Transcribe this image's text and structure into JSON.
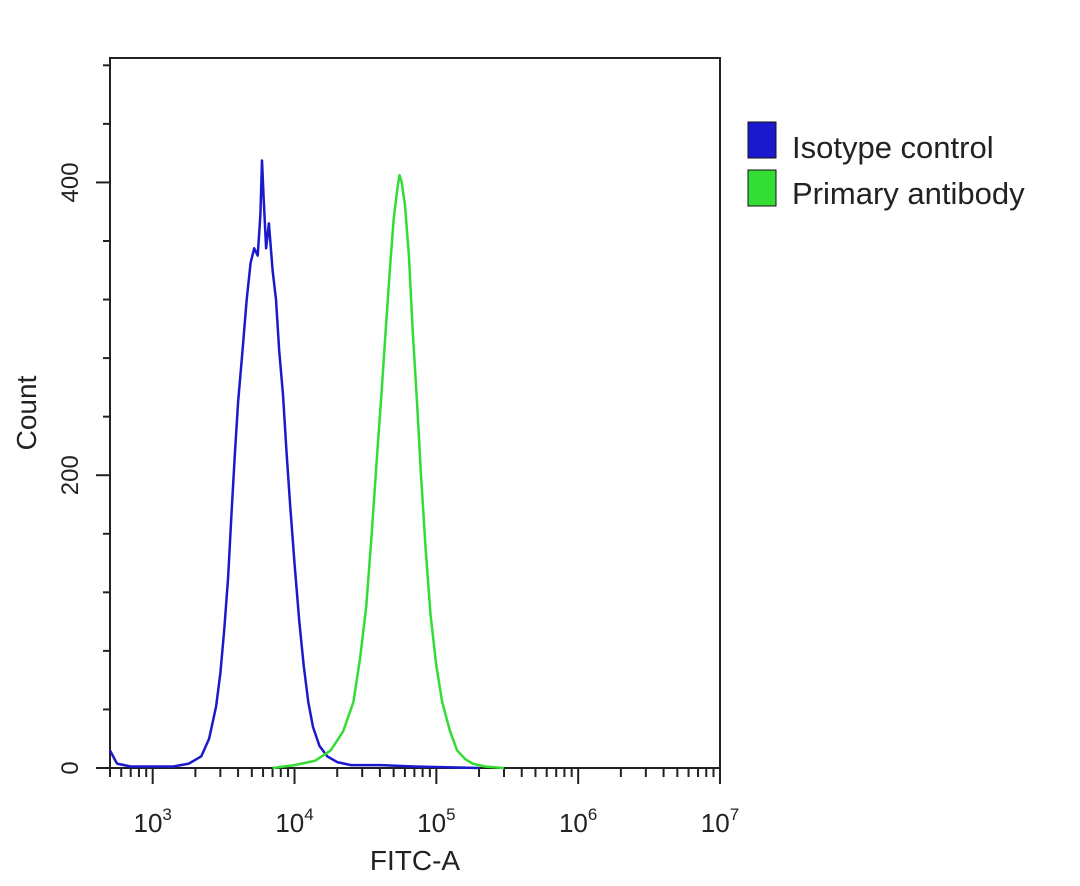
{
  "chart_data": {
    "type": "line",
    "xlabel": "FITC-A",
    "ylabel": "Count",
    "xscale": "log",
    "xlim": [
      500,
      10000000
    ],
    "ylim": [
      0,
      485
    ],
    "x_ticks": [
      {
        "value": 1000,
        "base": "10",
        "exp": "3"
      },
      {
        "value": 10000,
        "base": "10",
        "exp": "4"
      },
      {
        "value": 100000,
        "base": "10",
        "exp": "5"
      },
      {
        "value": 1000000,
        "base": "10",
        "exp": "6"
      },
      {
        "value": 10000000,
        "base": "10",
        "exp": "7"
      }
    ],
    "y_ticks": [
      0,
      200,
      400
    ],
    "y_tick_labels": [
      "0",
      "200",
      "400"
    ],
    "legend_position": "right-outside-top",
    "series": [
      {
        "name": "Isotype control",
        "color": "#1a1acc",
        "points": [
          [
            500,
            12
          ],
          [
            560,
            3
          ],
          [
            700,
            1
          ],
          [
            1000,
            1
          ],
          [
            1400,
            1
          ],
          [
            1800,
            3
          ],
          [
            2200,
            8
          ],
          [
            2500,
            20
          ],
          [
            2800,
            42
          ],
          [
            3000,
            65
          ],
          [
            3200,
            95
          ],
          [
            3400,
            130
          ],
          [
            3600,
            175
          ],
          [
            3800,
            215
          ],
          [
            4000,
            250
          ],
          [
            4300,
            285
          ],
          [
            4600,
            320
          ],
          [
            4900,
            345
          ],
          [
            5200,
            355
          ],
          [
            5500,
            350
          ],
          [
            5750,
            378
          ],
          [
            5900,
            415
          ],
          [
            6050,
            390
          ],
          [
            6300,
            355
          ],
          [
            6600,
            372
          ],
          [
            7000,
            340
          ],
          [
            7400,
            320
          ],
          [
            7800,
            285
          ],
          [
            8300,
            255
          ],
          [
            8800,
            215
          ],
          [
            9300,
            180
          ],
          [
            10000,
            140
          ],
          [
            10800,
            100
          ],
          [
            11600,
            70
          ],
          [
            12500,
            45
          ],
          [
            13500,
            28
          ],
          [
            15000,
            15
          ],
          [
            17000,
            8
          ],
          [
            20000,
            4
          ],
          [
            25000,
            2
          ],
          [
            40000,
            2
          ],
          [
            70000,
            1
          ],
          [
            200000,
            0
          ]
        ]
      },
      {
        "name": "Primary antibody",
        "color": "#33dd33",
        "points": [
          [
            7000,
            0
          ],
          [
            10000,
            2
          ],
          [
            14000,
            5
          ],
          [
            18000,
            12
          ],
          [
            22000,
            25
          ],
          [
            26000,
            45
          ],
          [
            29000,
            75
          ],
          [
            32000,
            110
          ],
          [
            35000,
            160
          ],
          [
            38000,
            210
          ],
          [
            41000,
            255
          ],
          [
            44000,
            300
          ],
          [
            47000,
            340
          ],
          [
            50000,
            375
          ],
          [
            53000,
            395
          ],
          [
            55000,
            405
          ],
          [
            57000,
            400
          ],
          [
            60000,
            385
          ],
          [
            64000,
            350
          ],
          [
            68000,
            300
          ],
          [
            73000,
            250
          ],
          [
            78000,
            200
          ],
          [
            84000,
            150
          ],
          [
            91000,
            105
          ],
          [
            100000,
            70
          ],
          [
            110000,
            45
          ],
          [
            125000,
            25
          ],
          [
            140000,
            12
          ],
          [
            160000,
            6
          ],
          [
            180000,
            3
          ],
          [
            220000,
            1
          ],
          [
            300000,
            0
          ]
        ]
      }
    ]
  }
}
